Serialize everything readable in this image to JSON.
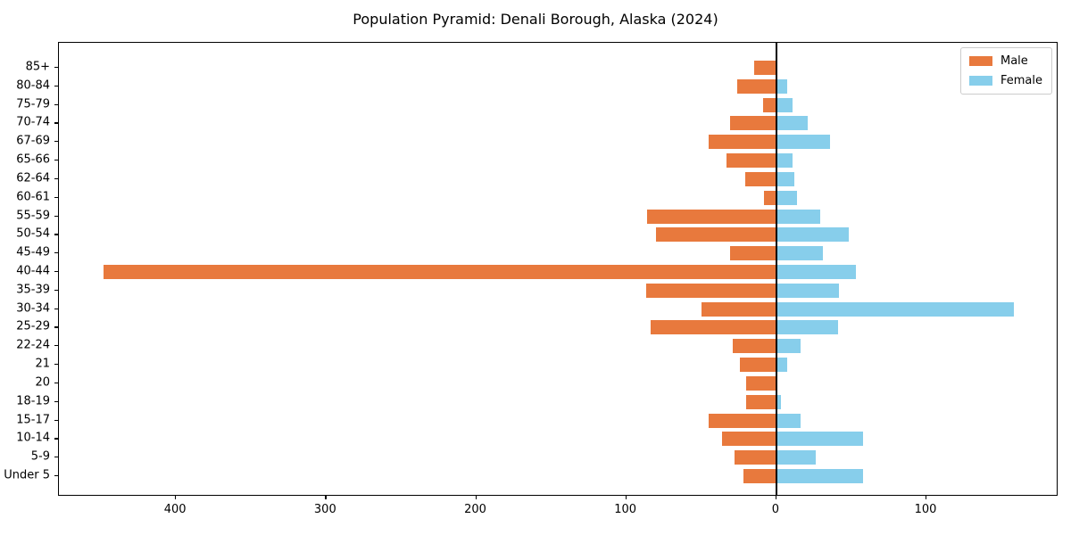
{
  "chart_data": {
    "type": "bar",
    "subtype": "population-pyramid",
    "title": "Population Pyramid: Denali Borough, Alaska (2024)",
    "categories": [
      "85+",
      "80-84",
      "75-79",
      "70-74",
      "67-69",
      "65-66",
      "62-64",
      "60-61",
      "55-59",
      "50-54",
      "45-49",
      "40-44",
      "35-39",
      "30-34",
      "25-29",
      "22-24",
      "21",
      "20",
      "18-19",
      "15-17",
      "10-14",
      "5-9",
      "Under 5"
    ],
    "categories_order": "top-to-bottom",
    "series": [
      {
        "name": "Male",
        "side": "left",
        "color": "#e8793d",
        "values": [
          15,
          26,
          9,
          31,
          45,
          33,
          21,
          8,
          86,
          80,
          31,
          448,
          87,
          50,
          84,
          29,
          24,
          20,
          20,
          45,
          36,
          28,
          22
        ]
      },
      {
        "name": "Female",
        "side": "right",
        "color": "#87ceeb",
        "values": [
          0,
          7,
          11,
          21,
          36,
          11,
          12,
          14,
          29,
          48,
          31,
          53,
          42,
          158,
          41,
          16,
          7,
          0,
          3,
          16,
          58,
          26,
          58
        ]
      }
    ],
    "xlabel": "",
    "ylabel": "",
    "xlim": [
      -478,
      188
    ],
    "xticks": [
      {
        "value": -400,
        "label": "400"
      },
      {
        "value": -300,
        "label": "300"
      },
      {
        "value": -200,
        "label": "200"
      },
      {
        "value": -100,
        "label": "100"
      },
      {
        "value": 0,
        "label": "0"
      },
      {
        "value": 100,
        "label": "100"
      }
    ],
    "zero_line": true,
    "grid": false,
    "legend_position": "upper-right",
    "axis_color": "#000000",
    "background": "#ffffff"
  }
}
